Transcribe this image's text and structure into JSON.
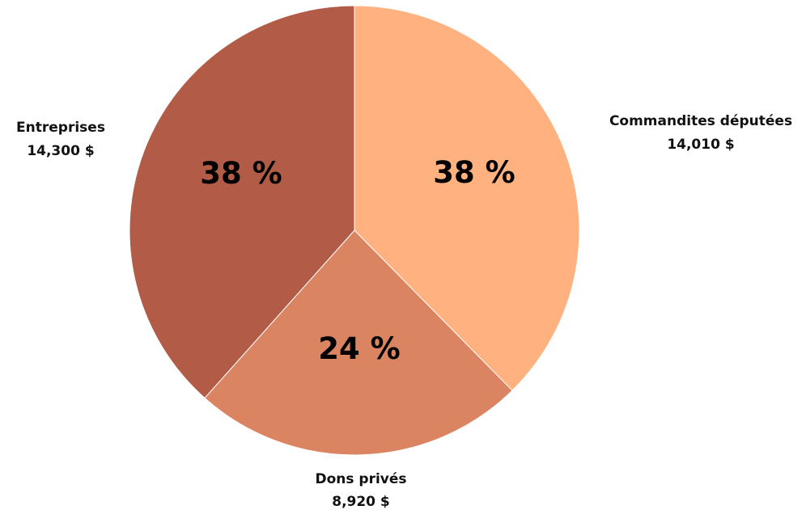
{
  "chart_data": {
    "type": "pie",
    "slices": [
      {
        "name": "Commandites députées",
        "amount_label": "14,010 $",
        "value": 14010,
        "percent_label": "38 %",
        "color": "#FFB27F"
      },
      {
        "name": "Dons privés",
        "amount_label": "8,920 $",
        "value": 8920,
        "percent_label": "24 %",
        "color": "#DA8461"
      },
      {
        "name": "Entreprises",
        "amount_label": "14,300 $",
        "value": 14300,
        "percent_label": "38 %",
        "color": "#B25C48"
      }
    ]
  }
}
